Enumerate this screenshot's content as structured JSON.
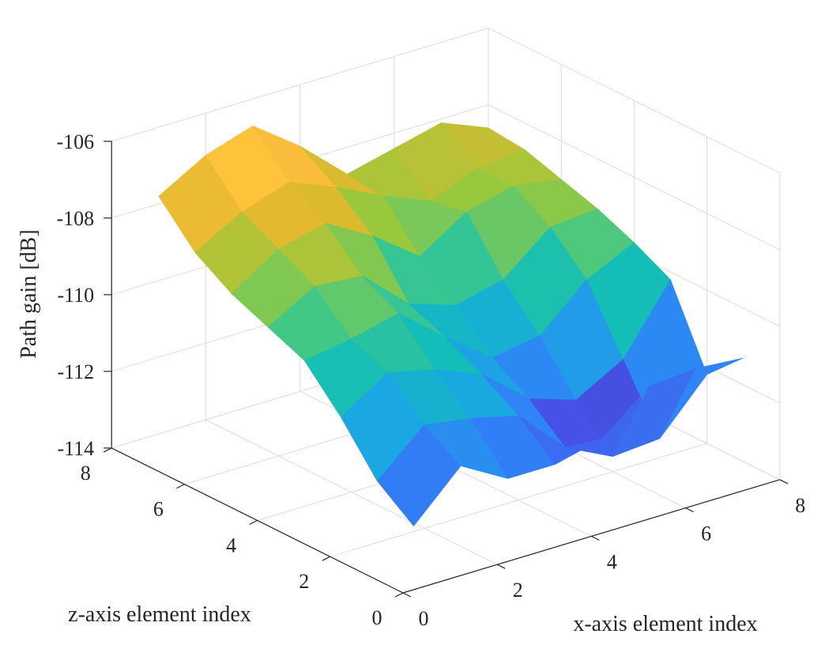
{
  "chart_data": {
    "type": "surface",
    "xlabel": "x-axis element index",
    "zlabel": "z-axis element index",
    "ylabel": "Path gain [dB]",
    "xlim": [
      0,
      8
    ],
    "zlim": [
      0,
      8
    ],
    "ylim": [
      -114,
      -106
    ],
    "x_ticks": [
      "0",
      "2",
      "4",
      "6",
      "8"
    ],
    "z_ticks": [
      "0",
      "2",
      "4",
      "6",
      "8"
    ],
    "y_ticks": [
      "-106",
      "-108",
      "-110",
      "-112",
      "-114"
    ],
    "y_tick_values": [
      -106,
      -108,
      -110,
      -112,
      -114
    ],
    "grid": true,
    "colormap": [
      "#3e26a8",
      "#4653e8",
      "#2f83f8",
      "#1aa8e0",
      "#13beb8",
      "#43c885",
      "#98c83d",
      "#e1b92d",
      "#fdbe3d",
      "#f9f71e"
    ],
    "x": [
      1,
      2,
      3,
      4,
      5,
      6,
      7,
      8
    ],
    "z": [
      1,
      2,
      3,
      4,
      5,
      6,
      7,
      8
    ],
    "values": [
      [
        -113.1,
        -111.9,
        -112.6,
        -112.6,
        -112.3,
        -111.3,
        -111.2,
        -111.3
      ],
      [
        -112.4,
        -111.3,
        -111.5,
        -111.8,
        -113.0,
        -113.6,
        -113.5,
        -112.2
      ],
      [
        -111.2,
        -110.4,
        -110.7,
        -111.2,
        -112.2,
        -112.6,
        -111.9,
        -110.2
      ],
      [
        -110.2,
        -110.0,
        -109.7,
        -110.7,
        -111.6,
        -111.4,
        -110.3,
        -109.7
      ],
      [
        -109.8,
        -109.1,
        -109.2,
        -110.3,
        -110.7,
        -110.4,
        -109.4,
        -109.3
      ],
      [
        -109.4,
        -108.6,
        -108.3,
        -109.0,
        -109.9,
        -109.1,
        -108.8,
        -109.0
      ],
      [
        -108.8,
        -108.1,
        -107.7,
        -108.2,
        -108.8,
        -109.3,
        -108.8,
        -108.7
      ],
      [
        -107.8,
        -107.1,
        -106.7,
        -107.6,
        -108.7,
        -108.4,
        -108.1,
        -108.6
      ]
    ]
  }
}
